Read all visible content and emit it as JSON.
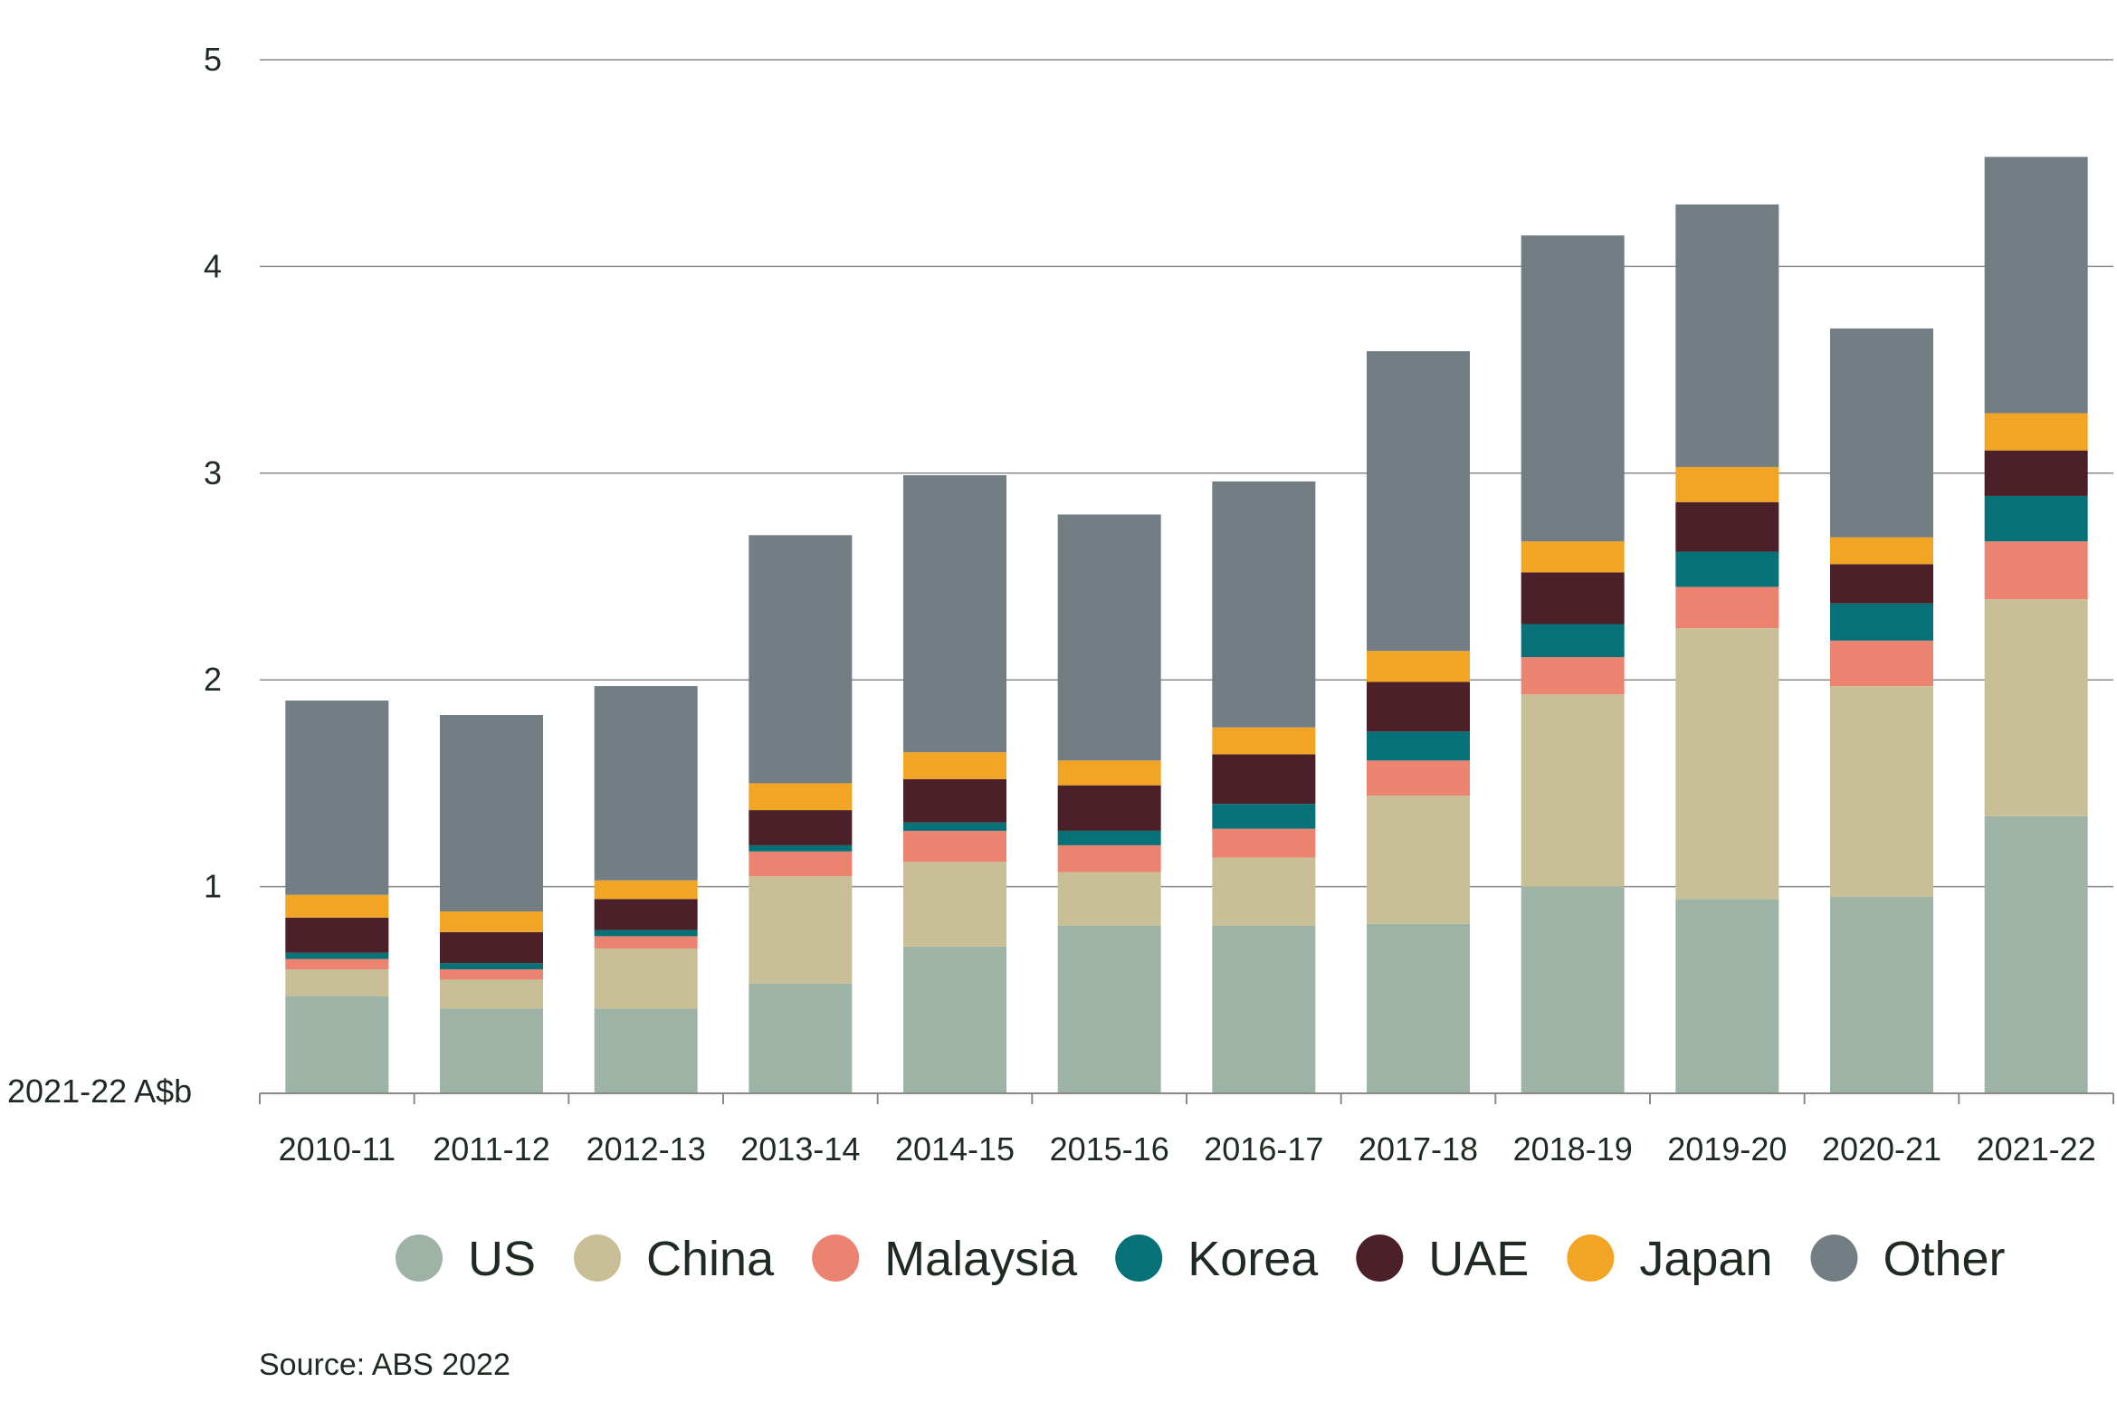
{
  "chart_data": {
    "type": "bar",
    "stacked": true,
    "ylabel": "2021-22 A$b",
    "ylim": [
      0,
      5
    ],
    "yticks": [
      1,
      2,
      3,
      4,
      5
    ],
    "grid": true,
    "legend_position": "bottom",
    "source": "Source: ABS 2022",
    "categories": [
      "2010-11",
      "2011-12",
      "2012-13",
      "2013-14",
      "2014-15",
      "2015-16",
      "2016-17",
      "2017-18",
      "2018-19",
      "2019-20",
      "2020-21",
      "2021-22"
    ],
    "series": [
      {
        "name": "US",
        "color": "#9db3a6",
        "values": [
          0.47,
          0.41,
          0.41,
          0.53,
          0.71,
          0.81,
          0.81,
          0.82,
          1.0,
          0.94,
          0.95,
          1.34
        ]
      },
      {
        "name": "China",
        "color": "#c8bf96",
        "values": [
          0.13,
          0.14,
          0.29,
          0.52,
          0.41,
          0.26,
          0.33,
          0.62,
          0.93,
          1.31,
          1.02,
          1.05
        ]
      },
      {
        "name": "Malaysia",
        "color": "#ec8270",
        "values": [
          0.05,
          0.05,
          0.06,
          0.12,
          0.15,
          0.13,
          0.14,
          0.17,
          0.18,
          0.2,
          0.22,
          0.28
        ]
      },
      {
        "name": "Korea",
        "color": "#077178",
        "values": [
          0.03,
          0.03,
          0.03,
          0.03,
          0.04,
          0.07,
          0.12,
          0.14,
          0.16,
          0.17,
          0.18,
          0.22
        ]
      },
      {
        "name": "UAE",
        "color": "#4b2028",
        "values": [
          0.17,
          0.15,
          0.15,
          0.17,
          0.21,
          0.22,
          0.24,
          0.24,
          0.25,
          0.24,
          0.19,
          0.22
        ]
      },
      {
        "name": "Japan",
        "color": "#f2a425",
        "values": [
          0.11,
          0.1,
          0.09,
          0.13,
          0.13,
          0.12,
          0.13,
          0.15,
          0.15,
          0.17,
          0.13,
          0.18
        ]
      },
      {
        "name": "Other",
        "color": "#737e84",
        "values": [
          0.94,
          0.95,
          0.94,
          1.2,
          1.34,
          1.19,
          1.19,
          1.45,
          1.48,
          1.27,
          1.01,
          1.24
        ]
      }
    ]
  }
}
